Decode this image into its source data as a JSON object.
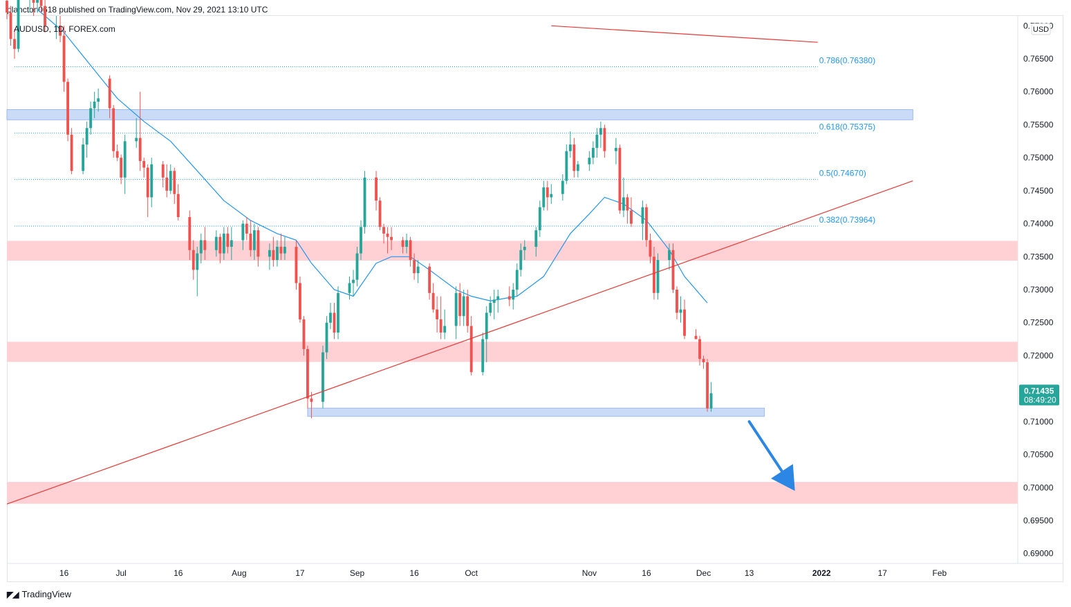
{
  "header": {
    "published": "plancton0618 published on TradingView.com, Nov 29, 2021 13:10 UTC"
  },
  "footer": {
    "brand": "TradingView",
    "logo": "tradingview-logo-icon"
  },
  "chart_data": {
    "type": "candlestick",
    "symbol_label": "AUDUSD, 1D, FOREX.com",
    "currency": "USD",
    "y_ticks": [
      "0.77000",
      "0.76500",
      "0.76000",
      "0.75500",
      "0.75000",
      "0.74500",
      "0.74000",
      "0.73500",
      "0.73000",
      "0.72500",
      "0.72000",
      "0.71500",
      "0.71000",
      "0.70500",
      "0.70000",
      "0.69500",
      "0.69000"
    ],
    "ylim": [
      0.6885,
      0.7715
    ],
    "x_tick_labels": [
      {
        "label": "16",
        "date": "2021-06-16"
      },
      {
        "label": "Jul",
        "date": "2021-07-01"
      },
      {
        "label": "16",
        "date": "2021-07-16"
      },
      {
        "label": "Aug",
        "date": "2021-08-01"
      },
      {
        "label": "17",
        "date": "2021-08-17"
      },
      {
        "label": "Sep",
        "date": "2021-09-01"
      },
      {
        "label": "16",
        "date": "2021-09-16"
      },
      {
        "label": "Oct",
        "date": "2021-10-01"
      },
      {
        "label": "Nov",
        "date": "2021-11-01"
      },
      {
        "label": "16",
        "date": "2021-11-16"
      },
      {
        "label": "Dec",
        "date": "2021-12-01"
      },
      {
        "label": "13",
        "date": "2021-12-13"
      },
      {
        "label": "2022",
        "date": "2022-01-01"
      },
      {
        "label": "17",
        "date": "2022-01-17"
      },
      {
        "label": "Feb",
        "date": "2022-02-01"
      }
    ],
    "last_price": {
      "value": "0.71435",
      "countdown": "08:49:20"
    },
    "colors": {
      "up": "#26a69a",
      "down": "#ef5350",
      "ma": "#2196f3",
      "trend": "#e53935",
      "resistance": "#ffcdd2",
      "support": "#c5d8f8",
      "fib": "#2196f3",
      "arrow": "#2b86e4"
    },
    "candles": [
      [
        "2021-06-01",
        0.7738,
        0.776,
        0.771,
        0.772
      ],
      [
        "2021-06-02",
        0.772,
        0.773,
        0.767,
        0.768
      ],
      [
        "2021-06-03",
        0.768,
        0.7695,
        0.765,
        0.7665
      ],
      [
        "2021-06-04",
        0.7665,
        0.7745,
        0.766,
        0.774
      ],
      [
        "2021-06-07",
        0.774,
        0.7755,
        0.772,
        0.7745
      ],
      [
        "2021-06-08",
        0.7745,
        0.7755,
        0.7715,
        0.7735
      ],
      [
        "2021-06-09",
        0.7735,
        0.776,
        0.772,
        0.774
      ],
      [
        "2021-06-10",
        0.774,
        0.7765,
        0.772,
        0.773
      ],
      [
        "2021-06-11",
        0.773,
        0.774,
        0.769,
        0.77
      ],
      [
        "2021-06-14",
        0.77,
        0.7715,
        0.768,
        0.77
      ],
      [
        "2021-06-15",
        0.77,
        0.7715,
        0.7675,
        0.7685
      ],
      [
        "2021-06-16",
        0.7685,
        0.77,
        0.76,
        0.7615
      ],
      [
        "2021-06-17",
        0.7615,
        0.762,
        0.7525,
        0.7535
      ],
      [
        "2021-06-18",
        0.7535,
        0.7545,
        0.7475,
        0.748
      ],
      [
        "2021-06-21",
        0.748,
        0.753,
        0.7475,
        0.752
      ],
      [
        "2021-06-22",
        0.752,
        0.7555,
        0.75,
        0.7545
      ],
      [
        "2021-06-23",
        0.7545,
        0.7585,
        0.7535,
        0.7575
      ],
      [
        "2021-06-24",
        0.7575,
        0.76,
        0.756,
        0.7585
      ],
      [
        "2021-06-25",
        0.7585,
        0.7605,
        0.757,
        0.759
      ],
      [
        "2021-06-28",
        0.762,
        0.7625,
        0.756,
        0.7575
      ],
      [
        "2021-06-29",
        0.7575,
        0.758,
        0.75,
        0.751
      ],
      [
        "2021-06-30",
        0.751,
        0.752,
        0.7495,
        0.75
      ],
      [
        "2021-07-01",
        0.75,
        0.7505,
        0.746,
        0.747
      ],
      [
        "2021-07-02",
        0.747,
        0.7535,
        0.7445,
        0.7525
      ],
      [
        "2021-07-05",
        0.7525,
        0.756,
        0.7515,
        0.753
      ],
      [
        "2021-07-06",
        0.753,
        0.76,
        0.748,
        0.7495
      ],
      [
        "2021-07-07",
        0.7495,
        0.75,
        0.747,
        0.7485
      ],
      [
        "2021-07-08",
        0.7485,
        0.749,
        0.741,
        0.744
      ],
      [
        "2021-07-09",
        0.744,
        0.75,
        0.7425,
        0.749
      ],
      [
        "2021-07-12",
        0.749,
        0.7495,
        0.7455,
        0.747
      ],
      [
        "2021-07-13",
        0.747,
        0.749,
        0.744,
        0.745
      ],
      [
        "2021-07-14",
        0.745,
        0.749,
        0.7445,
        0.748
      ],
      [
        "2021-07-15",
        0.748,
        0.7485,
        0.743,
        0.7445
      ],
      [
        "2021-07-16",
        0.7445,
        0.746,
        0.7405,
        0.741
      ],
      [
        "2021-07-19",
        0.741,
        0.742,
        0.7345,
        0.736
      ],
      [
        "2021-07-20",
        0.736,
        0.7375,
        0.7315,
        0.733
      ],
      [
        "2021-07-21",
        0.733,
        0.7365,
        0.729,
        0.7355
      ],
      [
        "2021-07-22",
        0.7355,
        0.7385,
        0.734,
        0.7375
      ],
      [
        "2021-07-23",
        0.7375,
        0.7395,
        0.7345,
        0.736
      ],
      [
        "2021-07-26",
        0.736,
        0.739,
        0.735,
        0.738
      ],
      [
        "2021-07-27",
        0.738,
        0.7385,
        0.734,
        0.7355
      ],
      [
        "2021-07-28",
        0.7355,
        0.7395,
        0.7345,
        0.7385
      ],
      [
        "2021-07-29",
        0.7385,
        0.7395,
        0.7355,
        0.7365
      ],
      [
        "2021-07-30",
        0.7365,
        0.7395,
        0.7345,
        0.7375
      ],
      [
        "2021-08-02",
        0.7375,
        0.7405,
        0.736,
        0.74
      ],
      [
        "2021-08-03",
        0.74,
        0.741,
        0.7375,
        0.7385
      ],
      [
        "2021-08-04",
        0.7385,
        0.7405,
        0.735,
        0.736
      ],
      [
        "2021-08-05",
        0.736,
        0.74,
        0.7345,
        0.739
      ],
      [
        "2021-08-06",
        0.739,
        0.7395,
        0.7335,
        0.735
      ],
      [
        "2021-08-09",
        0.735,
        0.737,
        0.733,
        0.736
      ],
      [
        "2021-08-10",
        0.736,
        0.738,
        0.7335,
        0.7345
      ],
      [
        "2021-08-11",
        0.7345,
        0.7375,
        0.7335,
        0.7365
      ],
      [
        "2021-08-12",
        0.7365,
        0.7385,
        0.7345,
        0.7355
      ],
      [
        "2021-08-13",
        0.7355,
        0.738,
        0.7345,
        0.7365
      ],
      [
        "2021-08-16",
        0.7365,
        0.7375,
        0.73,
        0.731
      ],
      [
        "2021-08-17",
        0.731,
        0.732,
        0.725,
        0.7255
      ],
      [
        "2021-08-18",
        0.7255,
        0.726,
        0.72,
        0.721
      ],
      [
        "2021-08-19",
        0.721,
        0.7215,
        0.712,
        0.7135
      ],
      [
        "2021-08-20",
        0.7135,
        0.7145,
        0.7105,
        0.713
      ],
      [
        "2021-08-23",
        0.713,
        0.7215,
        0.712,
        0.7205
      ],
      [
        "2021-08-24",
        0.7205,
        0.726,
        0.7195,
        0.725
      ],
      [
        "2021-08-25",
        0.725,
        0.728,
        0.724,
        0.7265
      ],
      [
        "2021-08-26",
        0.7265,
        0.728,
        0.7225,
        0.7235
      ],
      [
        "2021-08-27",
        0.7235,
        0.7305,
        0.7225,
        0.7295
      ],
      [
        "2021-08-30",
        0.7295,
        0.732,
        0.7285,
        0.731
      ],
      [
        "2021-08-31",
        0.731,
        0.733,
        0.729,
        0.7315
      ],
      [
        "2021-09-01",
        0.7315,
        0.7365,
        0.7305,
        0.7355
      ],
      [
        "2021-09-02",
        0.7355,
        0.7405,
        0.7345,
        0.7395
      ],
      [
        "2021-09-03",
        0.7395,
        0.748,
        0.7385,
        0.747
      ],
      [
        "2021-09-06",
        0.747,
        0.748,
        0.742,
        0.7435
      ],
      [
        "2021-09-07",
        0.7435,
        0.744,
        0.739,
        0.7395
      ],
      [
        "2021-09-08",
        0.7395,
        0.74,
        0.737,
        0.7385
      ],
      [
        "2021-09-09",
        0.7385,
        0.7395,
        0.7355,
        0.738
      ],
      [
        "2021-09-10",
        0.738,
        0.7395,
        0.736,
        0.7375
      ],
      [
        "2021-09-13",
        0.7375,
        0.738,
        0.7355,
        0.7365
      ],
      [
        "2021-09-14",
        0.7365,
        0.7385,
        0.7355,
        0.7375
      ],
      [
        "2021-09-15",
        0.7375,
        0.738,
        0.7335,
        0.7345
      ],
      [
        "2021-09-16",
        0.7345,
        0.7355,
        0.7315,
        0.7325
      ],
      [
        "2021-09-17",
        0.7325,
        0.7345,
        0.731,
        0.7335
      ],
      [
        "2021-09-20",
        0.7335,
        0.734,
        0.7285,
        0.7295
      ],
      [
        "2021-09-21",
        0.7295,
        0.731,
        0.7265,
        0.727
      ],
      [
        "2021-09-22",
        0.727,
        0.729,
        0.7235,
        0.7255
      ],
      [
        "2021-09-23",
        0.7255,
        0.729,
        0.7225,
        0.7235
      ],
      [
        "2021-09-24",
        0.7235,
        0.727,
        0.7225,
        0.7245
      ],
      [
        "2021-09-27",
        0.7245,
        0.7305,
        0.7225,
        0.7295
      ],
      [
        "2021-09-28",
        0.7295,
        0.731,
        0.7245,
        0.726
      ],
      [
        "2021-09-29",
        0.726,
        0.73,
        0.7245,
        0.729
      ],
      [
        "2021-09-30",
        0.729,
        0.73,
        0.7235,
        0.7245
      ],
      [
        "2021-10-01",
        0.7245,
        0.726,
        0.717,
        0.7175
      ],
      [
        "2021-10-04",
        0.7175,
        0.7235,
        0.717,
        0.7225
      ],
      [
        "2021-10-05",
        0.7225,
        0.7275,
        0.719,
        0.7265
      ],
      [
        "2021-10-06",
        0.7265,
        0.729,
        0.726,
        0.728
      ],
      [
        "2021-10-07",
        0.728,
        0.73,
        0.7255,
        0.7285
      ],
      [
        "2021-10-08",
        0.7285,
        0.73,
        0.7265,
        0.729
      ],
      [
        "2021-10-11",
        0.729,
        0.7305,
        0.7275,
        0.7285
      ],
      [
        "2021-10-12",
        0.7285,
        0.731,
        0.727,
        0.73
      ],
      [
        "2021-10-13",
        0.73,
        0.734,
        0.729,
        0.733
      ],
      [
        "2021-10-14",
        0.733,
        0.737,
        0.732,
        0.736
      ],
      [
        "2021-10-15",
        0.736,
        0.7375,
        0.7345,
        0.7365
      ],
      [
        "2021-10-18",
        0.7365,
        0.7395,
        0.735,
        0.739
      ],
      [
        "2021-10-19",
        0.739,
        0.7435,
        0.738,
        0.7425
      ],
      [
        "2021-10-20",
        0.7425,
        0.7465,
        0.742,
        0.7455
      ],
      [
        "2021-10-21",
        0.7455,
        0.7465,
        0.742,
        0.744
      ],
      [
        "2021-10-22",
        0.744,
        0.746,
        0.743,
        0.7445
      ],
      [
        "2021-10-25",
        0.7445,
        0.7475,
        0.7435,
        0.7465
      ],
      [
        "2021-10-26",
        0.7465,
        0.752,
        0.746,
        0.751
      ],
      [
        "2021-10-27",
        0.751,
        0.754,
        0.75,
        0.752
      ],
      [
        "2021-10-28",
        0.752,
        0.753,
        0.747,
        0.748
      ],
      [
        "2021-10-29",
        0.748,
        0.7495,
        0.747,
        0.749
      ],
      [
        "2021-11-01",
        0.749,
        0.751,
        0.748,
        0.75
      ],
      [
        "2021-11-02",
        0.75,
        0.7525,
        0.749,
        0.7515
      ],
      [
        "2021-11-03",
        0.7515,
        0.7545,
        0.75,
        0.7535
      ],
      [
        "2021-11-04",
        0.7535,
        0.7555,
        0.7515,
        0.7545
      ],
      [
        "2021-11-05",
        0.7545,
        0.755,
        0.75,
        0.751
      ],
      [
        "2021-11-08",
        0.751,
        0.753,
        0.749,
        0.7515
      ],
      [
        "2021-11-09",
        0.7515,
        0.752,
        0.7415,
        0.742
      ],
      [
        "2021-11-10",
        0.742,
        0.747,
        0.741,
        0.744
      ],
      [
        "2021-11-11",
        0.744,
        0.7445,
        0.74,
        0.742
      ],
      [
        "2021-11-12",
        0.742,
        0.744,
        0.7395,
        0.74
      ],
      [
        "2021-11-15",
        0.74,
        0.7435,
        0.7375,
        0.7425
      ],
      [
        "2021-11-16",
        0.7425,
        0.743,
        0.7365,
        0.7375
      ],
      [
        "2021-11-17",
        0.7375,
        0.7385,
        0.734,
        0.735
      ],
      [
        "2021-11-18",
        0.735,
        0.7365,
        0.7285,
        0.7295
      ],
      [
        "2021-11-19",
        0.7295,
        0.7355,
        0.7285,
        0.7345
      ],
      [
        "2021-11-22",
        0.7345,
        0.737,
        0.733,
        0.736
      ],
      [
        "2021-11-23",
        0.736,
        0.737,
        0.7295,
        0.73
      ],
      [
        "2021-11-24",
        0.73,
        0.7305,
        0.7255,
        0.7265
      ],
      [
        "2021-11-25",
        0.7265,
        0.729,
        0.725,
        0.727
      ],
      [
        "2021-11-26",
        0.727,
        0.7285,
        0.7225,
        0.723
      ],
      [
        "2021-11-29",
        0.723,
        0.724,
        0.7225,
        0.7225
      ],
      [
        "2021-11-30",
        0.7225,
        0.723,
        0.7185,
        0.7195
      ],
      [
        "2021-12-01",
        0.7195,
        0.72,
        0.718,
        0.719
      ],
      [
        "2021-12-02",
        0.719,
        0.7195,
        0.7115,
        0.712
      ],
      [
        "2021-12-03",
        0.712,
        0.716,
        0.7115,
        0.7143
      ]
    ],
    "moving_average": [
      [
        "2021-06-09",
        0.7725
      ],
      [
        "2021-06-16",
        0.769
      ],
      [
        "2021-06-23",
        0.764
      ],
      [
        "2021-06-30",
        0.759
      ],
      [
        "2021-07-07",
        0.7555
      ],
      [
        "2021-07-14",
        0.7525
      ],
      [
        "2021-07-21",
        0.748
      ],
      [
        "2021-07-28",
        0.7435
      ],
      [
        "2021-08-04",
        0.7405
      ],
      [
        "2021-08-11",
        0.7385
      ],
      [
        "2021-08-16",
        0.7375
      ],
      [
        "2021-08-20",
        0.734
      ],
      [
        "2021-08-26",
        0.73
      ],
      [
        "2021-08-31",
        0.729
      ],
      [
        "2021-09-06",
        0.734
      ],
      [
        "2021-09-10",
        0.735
      ],
      [
        "2021-09-15",
        0.735
      ],
      [
        "2021-09-20",
        0.733
      ],
      [
        "2021-09-27",
        0.73
      ],
      [
        "2021-10-01",
        0.729
      ],
      [
        "2021-10-06",
        0.7283
      ],
      [
        "2021-10-13",
        0.729
      ],
      [
        "2021-10-20",
        0.732
      ],
      [
        "2021-10-27",
        0.7385
      ],
      [
        "2021-11-01",
        0.7415
      ],
      [
        "2021-11-05",
        0.744
      ],
      [
        "2021-11-10",
        0.743
      ],
      [
        "2021-11-16",
        0.7405
      ],
      [
        "2021-11-22",
        0.736
      ],
      [
        "2021-11-26",
        0.732
      ],
      [
        "2021-12-02",
        0.728
      ]
    ],
    "trendlines": [
      [
        [
          "2021-06-01",
          0.6975
        ],
        [
          "2022-01-25",
          0.7465
        ]
      ],
      [
        [
          "2021-10-22",
          0.77
        ],
        [
          "2021-12-31",
          0.7675
        ]
      ]
    ],
    "zones": [
      {
        "kind": "support",
        "from": "2021-06-01",
        "to": "2022-01-25",
        "low": 0.75575,
        "high": 0.7573
      },
      {
        "kind": "resistance",
        "from": "2021-06-01",
        "to": "2022-02-28",
        "low": 0.7344,
        "high": 0.7374
      },
      {
        "kind": "resistance",
        "from": "2021-06-01",
        "to": "2022-02-28",
        "low": 0.71905,
        "high": 0.7221
      },
      {
        "kind": "support",
        "from": "2021-08-19",
        "to": "2021-12-17",
        "low": 0.7108,
        "high": 0.71205
      },
      {
        "kind": "resistance",
        "from": "2021-06-01",
        "to": "2022-02-28",
        "low": 0.69755,
        "high": 0.70085
      }
    ],
    "fibonacci": [
      {
        "label": "0.786(0.76380)",
        "value": 0.7638
      },
      {
        "label": "0.618(0.75375)",
        "value": 0.75375
      },
      {
        "label": "0.5(0.74670)",
        "value": 0.7467
      },
      {
        "label": "0.382(0.73964)",
        "value": 0.73964
      }
    ],
    "fib_range": [
      "2021-06-03",
      "2021-12-31"
    ],
    "arrow": {
      "from": [
        "2021-12-13",
        0.71
      ],
      "to": [
        "2021-12-25",
        0.6995
      ],
      "direction": "down"
    }
  }
}
